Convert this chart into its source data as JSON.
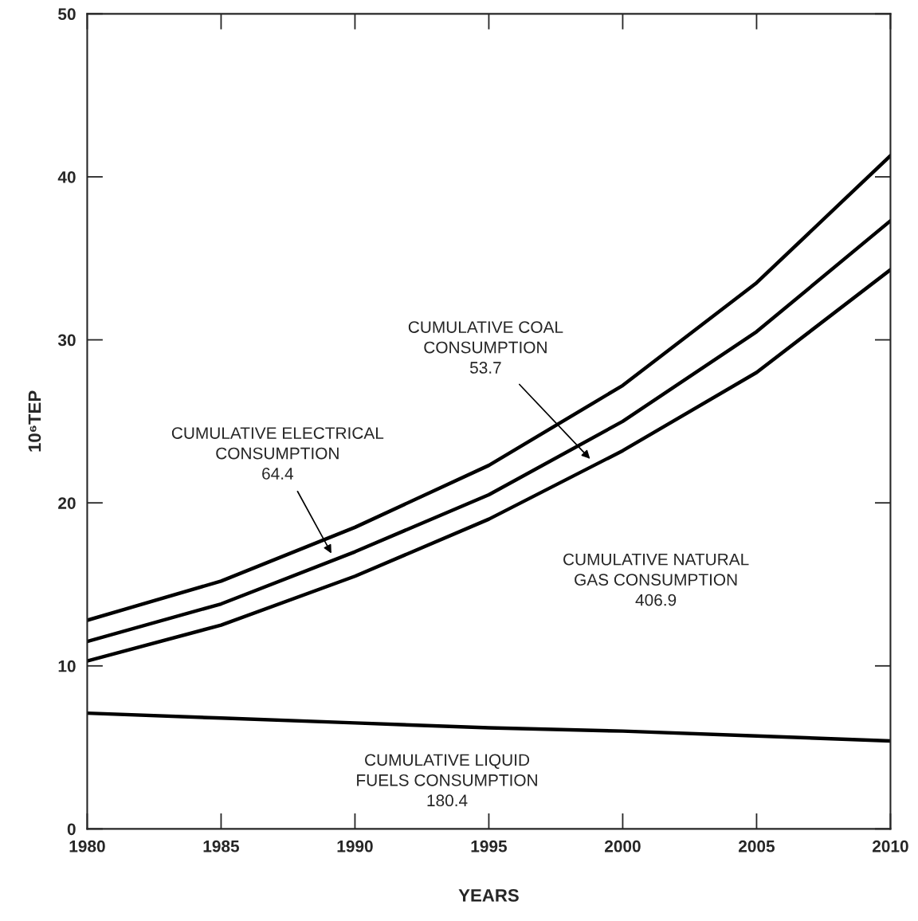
{
  "chart_data": {
    "type": "line",
    "xlabel": "YEARS",
    "ylabel": "10⁶TEP",
    "x": [
      1980,
      1985,
      1990,
      1995,
      2000,
      2005,
      2010
    ],
    "xlim": [
      1980,
      2010
    ],
    "xticks": [
      1980,
      1985,
      1990,
      1995,
      2000,
      2005,
      2010
    ],
    "ylim": [
      0,
      50
    ],
    "yticks": [
      0,
      10,
      20,
      30,
      40,
      50
    ],
    "grid": false,
    "marker": "none",
    "line_style": "solid",
    "series": [
      {
        "color": "#000000",
        "values": [
          12.8,
          15.2,
          18.5,
          22.3,
          27.2,
          33.5,
          41.3
        ]
      },
      {
        "color": "#000000",
        "values": [
          11.5,
          13.8,
          17.0,
          20.5,
          25.0,
          30.5,
          37.3
        ]
      },
      {
        "color": "#000000",
        "values": [
          10.3,
          12.5,
          15.5,
          19.0,
          23.2,
          28.0,
          34.3
        ]
      },
      {
        "color": "#000000",
        "values": [
          7.1,
          6.8,
          6.5,
          6.2,
          6.0,
          5.7,
          5.4
        ]
      }
    ],
    "annotations": [
      "CUMULATIVE ELECTRICAL\nCONSUMPTION\n64.4",
      "CUMULATIVE COAL\nCONSUMPTION\n53.7",
      "CUMULATIVE NATURAL\nGAS CONSUMPTION\n406.9",
      "CUMULATIVE LIQUID\nFUELS CONSUMPTION\n180.4"
    ]
  }
}
